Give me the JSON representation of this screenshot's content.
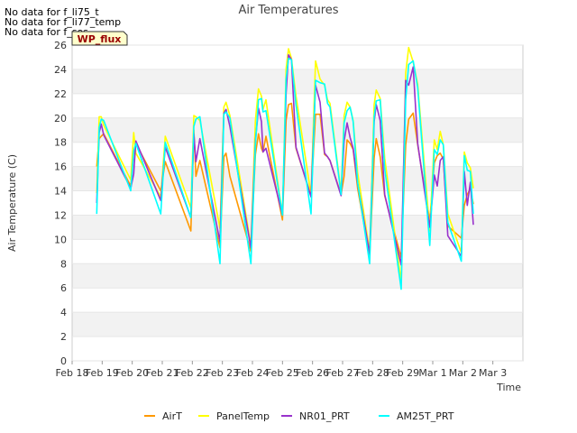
{
  "notices": [
    "No data for f_li75_t",
    "No data for f_li77_temp",
    "No data for f_sos"
  ],
  "badge": {
    "label": "WP_flux",
    "bg": "#ffffcc",
    "border": "#333333",
    "text_color": "#990000"
  },
  "chart_data": {
    "type": "line",
    "title": "Air Temperatures",
    "xlabel": "Time",
    "ylabel": "Air Temperature (C)",
    "ylim": [
      0,
      26
    ],
    "yticks": [
      0,
      2,
      4,
      6,
      8,
      10,
      12,
      14,
      16,
      18,
      20,
      22,
      24,
      26
    ],
    "xlim": [
      0,
      15
    ],
    "xticks": [
      {
        "value": 0,
        "label": "Feb 18"
      },
      {
        "value": 1,
        "label": "Feb 19"
      },
      {
        "value": 2,
        "label": "Feb 20"
      },
      {
        "value": 3,
        "label": "Feb 21"
      },
      {
        "value": 4,
        "label": "Feb 22"
      },
      {
        "value": 5,
        "label": "Feb 23"
      },
      {
        "value": 6,
        "label": "Feb 24"
      },
      {
        "value": 7,
        "label": "Feb 25"
      },
      {
        "value": 8,
        "label": "Feb 26"
      },
      {
        "value": 9,
        "label": "Feb 27"
      },
      {
        "value": 10,
        "label": "Feb 28"
      },
      {
        "value": 11,
        "label": "Feb 29"
      },
      {
        "value": 12,
        "label": "Mar 1"
      },
      {
        "value": 13,
        "label": "Mar 2"
      },
      {
        "value": 14,
        "label": "Mar 3"
      }
    ],
    "grid": "alternating horizontal bands",
    "legend": "bottom",
    "series": [
      {
        "name": "AirT",
        "color": "#ff9900",
        "x": [
          0.82,
          0.9,
          0.97,
          1.05,
          1.95,
          2.05,
          2.12,
          2.95,
          3.1,
          3.95,
          4.05,
          4.12,
          4.25,
          4.92,
          5.05,
          5.12,
          5.25,
          5.95,
          6.1,
          6.2,
          6.3,
          6.35,
          6.45,
          7.0,
          7.12,
          7.2,
          7.3,
          7.45,
          7.95,
          8.1,
          8.25,
          8.4,
          8.5,
          8.58,
          8.95,
          9.05,
          9.15,
          9.25,
          9.35,
          9.5,
          9.9,
          10.05,
          10.12,
          10.25,
          10.4,
          10.95,
          11.1,
          11.2,
          11.35,
          11.5,
          11.9,
          12.05,
          12.15,
          12.25,
          12.35,
          12.5,
          12.95,
          13.05,
          13.15,
          13.25,
          13.35
        ],
        "y": [
          16.0,
          18.3,
          18.5,
          18.7,
          14.4,
          17.2,
          17.9,
          14.0,
          16.4,
          10.7,
          19.0,
          15.2,
          16.5,
          9.3,
          16.8,
          17.1,
          15.2,
          9.0,
          17.0,
          18.7,
          17.5,
          17.2,
          18.5,
          11.6,
          19.8,
          21.1,
          21.2,
          17.5,
          13.6,
          20.3,
          20.3,
          17.0,
          16.8,
          16.5,
          13.7,
          15.2,
          18.2,
          17.9,
          17.4,
          14.2,
          8.6,
          16.7,
          18.3,
          16.8,
          13.6,
          8.5,
          17.8,
          19.9,
          20.4,
          17.8,
          11.5,
          16.3,
          16.9,
          17.1,
          16.6,
          11.1,
          10.1,
          12.8,
          13.7,
          14.2,
          12.9
        ]
      },
      {
        "name": "PanelTemp",
        "color": "#ffff00",
        "x": [
          0.82,
          0.9,
          0.97,
          1.05,
          1.95,
          2.05,
          2.12,
          2.95,
          3.1,
          3.95,
          4.05,
          4.12,
          4.25,
          4.92,
          5.05,
          5.12,
          5.25,
          5.95,
          6.1,
          6.2,
          6.3,
          6.35,
          6.45,
          7.0,
          7.12,
          7.2,
          7.3,
          7.45,
          7.95,
          8.1,
          8.25,
          8.4,
          8.5,
          8.58,
          8.95,
          9.05,
          9.15,
          9.25,
          9.35,
          9.5,
          9.9,
          10.05,
          10.12,
          10.25,
          10.4,
          10.95,
          11.1,
          11.2,
          11.35,
          11.5,
          11.9,
          12.05,
          12.15,
          12.25,
          12.35,
          12.5,
          12.95,
          13.05,
          13.15,
          13.25,
          13.35
        ],
        "y": [
          13.8,
          20.1,
          20.1,
          19.4,
          14.9,
          18.8,
          17.1,
          13.5,
          18.5,
          12.6,
          20.2,
          20.1,
          19.8,
          10.9,
          20.9,
          21.3,
          20.2,
          9.5,
          19.8,
          22.4,
          21.8,
          20.7,
          21.5,
          12.0,
          24.0,
          25.7,
          24.9,
          21.8,
          13.7,
          24.7,
          23.2,
          22.7,
          21.5,
          21.2,
          13.9,
          20.2,
          21.3,
          20.9,
          19.8,
          15.5,
          9.0,
          21.1,
          22.3,
          21.6,
          16.7,
          6.5,
          23.7,
          25.8,
          24.6,
          22.8,
          10.7,
          18.2,
          17.4,
          18.9,
          17.8,
          12.1,
          8.9,
          17.2,
          16.3,
          15.9,
          14.2
        ]
      },
      {
        "name": "NR01_PRT",
        "color": "#9933cc",
        "x": [
          0.82,
          0.9,
          0.97,
          1.05,
          1.95,
          2.05,
          2.12,
          2.95,
          3.1,
          3.95,
          4.05,
          4.12,
          4.25,
          4.92,
          5.05,
          5.12,
          5.25,
          5.95,
          6.1,
          6.2,
          6.3,
          6.35,
          6.45,
          7.0,
          7.12,
          7.2,
          7.3,
          7.45,
          7.95,
          8.1,
          8.25,
          8.4,
          8.5,
          8.58,
          8.95,
          9.05,
          9.15,
          9.25,
          9.35,
          9.5,
          9.9,
          10.05,
          10.12,
          10.25,
          10.4,
          10.95,
          11.1,
          11.2,
          11.35,
          11.5,
          11.9,
          12.05,
          12.15,
          12.25,
          12.35,
          12.5,
          12.95,
          13.05,
          13.15,
          13.25,
          13.35
        ],
        "y": [
          13.0,
          18.8,
          19.5,
          18.6,
          14.2,
          15.4,
          18.1,
          13.2,
          17.6,
          11.8,
          18.7,
          16.4,
          18.3,
          9.8,
          20.4,
          20.7,
          19.3,
          9.3,
          18.1,
          20.8,
          19.7,
          17.2,
          17.5,
          12.0,
          22.0,
          25.2,
          24.8,
          17.6,
          13.5,
          22.7,
          21.3,
          17.1,
          16.8,
          16.5,
          13.6,
          18.1,
          19.6,
          18.4,
          17.5,
          14.6,
          8.8,
          19.7,
          21.1,
          19.8,
          13.7,
          7.9,
          23.1,
          22.7,
          24.2,
          17.9,
          11.0,
          15.3,
          14.4,
          16.5,
          16.8,
          10.3,
          8.6,
          15.6,
          12.8,
          14.7,
          11.2
        ]
      },
      {
        "name": "AM25T_PRT",
        "color": "#00ffff",
        "x": [
          0.82,
          0.9,
          0.97,
          1.05,
          1.95,
          2.05,
          2.12,
          2.95,
          3.1,
          3.95,
          4.05,
          4.12,
          4.25,
          4.92,
          5.05,
          5.12,
          5.25,
          5.95,
          6.1,
          6.2,
          6.3,
          6.35,
          6.45,
          7.0,
          7.12,
          7.2,
          7.3,
          7.45,
          7.95,
          8.1,
          8.25,
          8.4,
          8.5,
          8.58,
          8.95,
          9.05,
          9.15,
          9.25,
          9.35,
          9.5,
          9.9,
          10.05,
          10.12,
          10.25,
          10.4,
          10.95,
          11.1,
          11.2,
          11.35,
          11.5,
          11.9,
          12.05,
          12.15,
          12.25,
          12.35,
          12.5,
          12.95,
          13.05,
          13.15,
          13.25,
          13.35
        ],
        "y": [
          12.1,
          19.2,
          19.9,
          19.8,
          14.0,
          17.3,
          17.9,
          12.1,
          18.0,
          11.8,
          19.3,
          19.9,
          20.1,
          8.0,
          20.3,
          20.5,
          20.0,
          8.0,
          17.8,
          21.5,
          21.6,
          20.5,
          20.6,
          12.0,
          23.2,
          24.9,
          24.8,
          21.1,
          12.1,
          23.1,
          22.9,
          22.8,
          21.2,
          20.9,
          13.7,
          19.6,
          20.6,
          20.9,
          19.7,
          14.7,
          8.0,
          20.1,
          21.4,
          21.5,
          15.8,
          5.9,
          21.5,
          24.4,
          24.7,
          22.5,
          9.5,
          17.4,
          17.0,
          18.2,
          17.8,
          11.4,
          8.2,
          16.9,
          15.7,
          15.6,
          12.1
        ]
      }
    ]
  }
}
